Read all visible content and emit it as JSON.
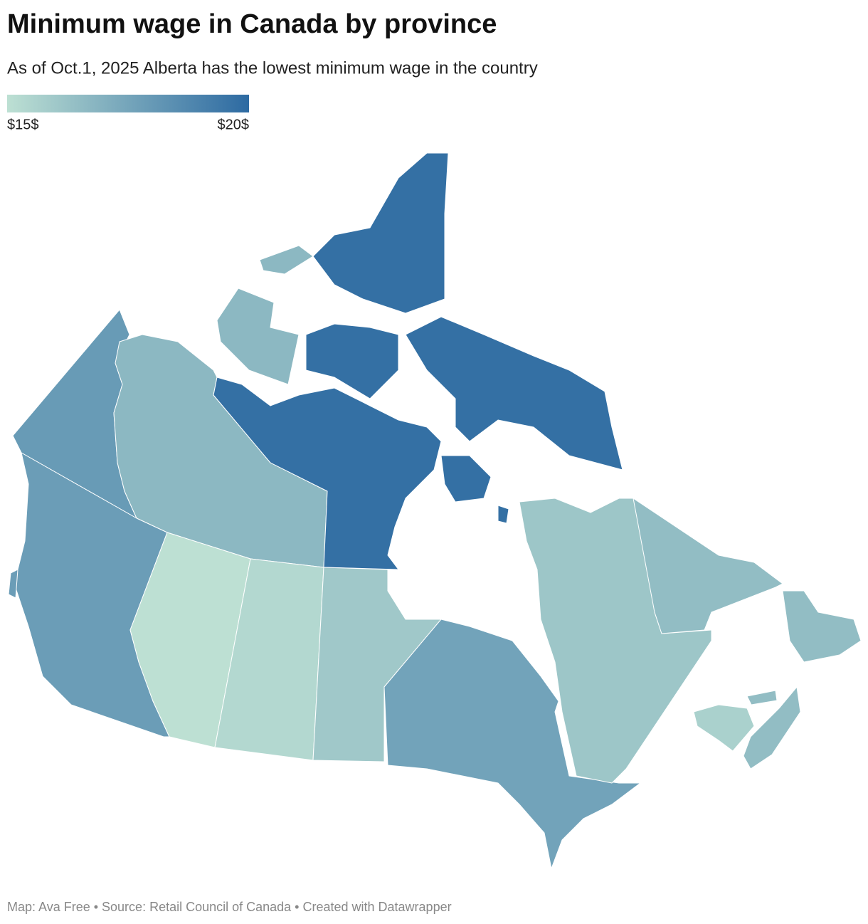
{
  "chart_data": {
    "type": "choropleth",
    "title": "Minimum wage in Canada by province",
    "subtitle": "As of Oct.1, 2025 Alberta has the lowest minimum wage in the country",
    "values": [
      17.94,
      16.7,
      19.75,
      17.85,
      15,
      15.35,
      16,
      17.6,
      16.1,
      16.5,
      15.65,
      16.5,
      16.5
    ],
    "color_scale": [
      "#bde0d3",
      "#2d6aa2"
    ],
    "clim": [
      15,
      20
    ],
    "scale_ticks": [
      {
        "value": 15,
        "label": "$15$"
      },
      {
        "value": 20,
        "label": "$20$"
      }
    ],
    "source": "Map: Ava Free • Source: Retail Council of Canada • Created with Datawrapper"
  }
}
